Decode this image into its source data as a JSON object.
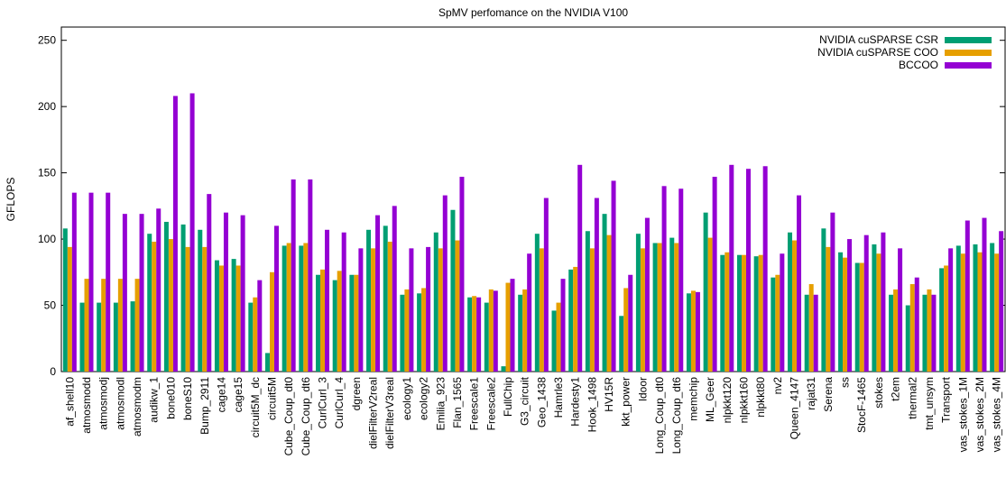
{
  "chart_data": {
    "type": "bar",
    "title": "SpMV perfomance on the NVIDIA V100",
    "y_label": "GFLOPS",
    "categories": [
      "af_shell10",
      "atmosmodd",
      "atmosmodj",
      "atmosmodl",
      "atmosmodm",
      "audikw_1",
      "bone010",
      "boneS10",
      "Bump_2911",
      "cage14",
      "cage15",
      "circuit5M_dc",
      "circuit5M",
      "Cube_Coup_dt0",
      "Cube_Coup_dt6",
      "CurlCurl_3",
      "CurlCurl_4",
      "dgreen",
      "dielFilterV2real",
      "dielFilterV3real",
      "ecology1",
      "ecology2",
      "Emilia_923",
      "Flan_1565",
      "Freescale1",
      "Freescale2",
      "FullChip",
      "G3_circuit",
      "Geo_1438",
      "Hamrle3",
      "Hardesty1",
      "Hook_1498",
      "HV15R",
      "kkt_power",
      "ldoor",
      "Long_Coup_dt0",
      "Long_Coup_dt6",
      "memchip",
      "ML_Geer",
      "nlpkkt120",
      "nlpkkt160",
      "nlpkkt80",
      "nv2",
      "Queen_4147",
      "rajat31",
      "Serena",
      "ss",
      "StocF-1465",
      "stokes",
      "t2em",
      "thermal2",
      "tmt_unsym",
      "Transport",
      "vas_stokes_1M",
      "vas_stokes_2M",
      "vas_stokes_4M"
    ],
    "series": [
      {
        "name": "NVIDIA cuSPARSE CSR",
        "color": "#009e73",
        "values": [
          108,
          52,
          52,
          52,
          53,
          104,
          113,
          111,
          107,
          84,
          85,
          52,
          14,
          95,
          95,
          73,
          69,
          73,
          107,
          110,
          58,
          59,
          105,
          122,
          56,
          52,
          4,
          58,
          104,
          46,
          77,
          106,
          119,
          42,
          104,
          97,
          101,
          59,
          120,
          88,
          88,
          87,
          71,
          105,
          58,
          108,
          90,
          82,
          96,
          58,
          50,
          58,
          78,
          95,
          96,
          97
        ]
      },
      {
        "name": "NVIDIA cuSPARSE COO",
        "color": "#e69f00",
        "values": [
          94,
          70,
          70,
          70,
          70,
          98,
          100,
          94,
          94,
          80,
          80,
          56,
          75,
          97,
          97,
          77,
          76,
          73,
          93,
          98,
          62,
          63,
          93,
          99,
          57,
          62,
          67,
          62,
          93,
          52,
          79,
          93,
          103,
          63,
          93,
          97,
          97,
          61,
          101,
          90,
          88,
          88,
          73,
          99,
          66,
          94,
          86,
          82,
          89,
          62,
          66,
          62,
          80,
          89,
          90,
          89
        ]
      },
      {
        "name": "BCCOO",
        "color": "#9400d3",
        "values": [
          135,
          135,
          135,
          119,
          119,
          123,
          208,
          210,
          134,
          120,
          118,
          69,
          110,
          145,
          145,
          107,
          105,
          93,
          118,
          125,
          93,
          94,
          133,
          147,
          56,
          61,
          70,
          89,
          131,
          70,
          156,
          131,
          144,
          73,
          116,
          140,
          138,
          60,
          147,
          156,
          153,
          155,
          89,
          133,
          58,
          120,
          100,
          103,
          105,
          93,
          71,
          58,
          93,
          114,
          116,
          106
        ]
      }
    ],
    "ylim": [
      0,
      260
    ],
    "yticks": [
      0,
      50,
      100,
      150,
      200,
      250
    ],
    "legend": "top-right"
  }
}
